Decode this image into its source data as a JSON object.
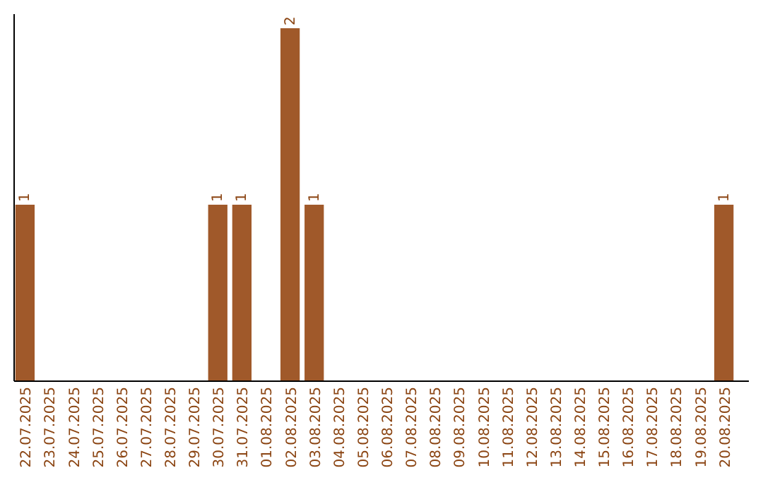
{
  "chart_data": {
    "type": "bar",
    "categories": [
      "22.07.2025",
      "23.07.2025",
      "24.07.2025",
      "25.07.2025",
      "26.07.2025",
      "27.07.2025",
      "28.07.2025",
      "29.07.2025",
      "30.07.2025",
      "31.07.2025",
      "01.08.2025",
      "02.08.2025",
      "03.08.2025",
      "04.08.2025",
      "05.08.2025",
      "06.08.2025",
      "07.08.2025",
      "08.08.2025",
      "09.08.2025",
      "10.08.2025",
      "11.08.2025",
      "12.08.2025",
      "13.08.2025",
      "14.08.2025",
      "15.08.2025",
      "16.08.2025",
      "17.08.2025",
      "18.08.2025",
      "19.08.2025",
      "20.08.2025"
    ],
    "values": [
      1,
      0,
      0,
      0,
      0,
      0,
      0,
      0,
      1,
      1,
      0,
      2,
      1,
      0,
      0,
      0,
      0,
      0,
      0,
      0,
      0,
      0,
      0,
      0,
      0,
      0,
      0,
      0,
      0,
      1
    ],
    "value_labels": [
      "1",
      null,
      null,
      null,
      null,
      null,
      null,
      null,
      "1",
      "1",
      null,
      "2",
      "1",
      null,
      null,
      null,
      null,
      null,
      null,
      null,
      null,
      null,
      null,
      null,
      null,
      null,
      null,
      null,
      null,
      "1"
    ],
    "color": "#a0592a",
    "tick_labels": "x"
  }
}
